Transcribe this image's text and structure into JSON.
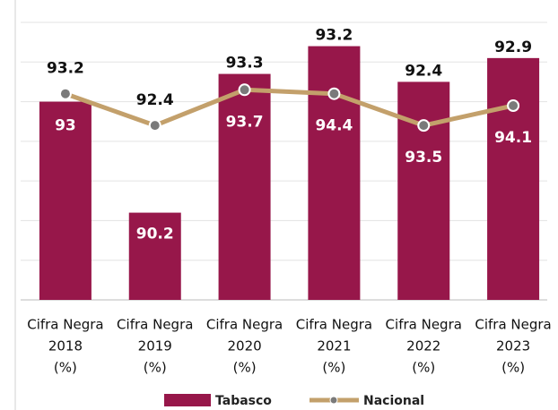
{
  "chart_data": {
    "type": "bar-line",
    "categories": [
      [
        "Cifra Negra",
        "2018",
        "(%)"
      ],
      [
        "Cifra Negra",
        "2019",
        "(%)"
      ],
      [
        "Cifra Negra",
        "2020",
        "(%)"
      ],
      [
        "Cifra Negra",
        "2021",
        "(%)"
      ],
      [
        "Cifra Negra",
        "2022",
        "(%)"
      ],
      [
        "Cifra Negra",
        "2023",
        "(%)"
      ]
    ],
    "series": [
      {
        "name": "Tabasco",
        "type": "bar",
        "color": "#97174a",
        "values": [
          93,
          90.2,
          93.7,
          94.4,
          93.5,
          94.1
        ]
      },
      {
        "name": "Nacional",
        "type": "line",
        "color": "#c3a06b",
        "marker_color": "#7a7a7a",
        "values": [
          93.2,
          92.4,
          93.3,
          93.2,
          92.4,
          92.9
        ]
      }
    ],
    "ylim": [
      88,
      95
    ],
    "yticks": [
      88,
      89,
      90,
      91,
      92,
      93,
      94,
      95
    ],
    "grid": true,
    "legend": "bottom"
  }
}
